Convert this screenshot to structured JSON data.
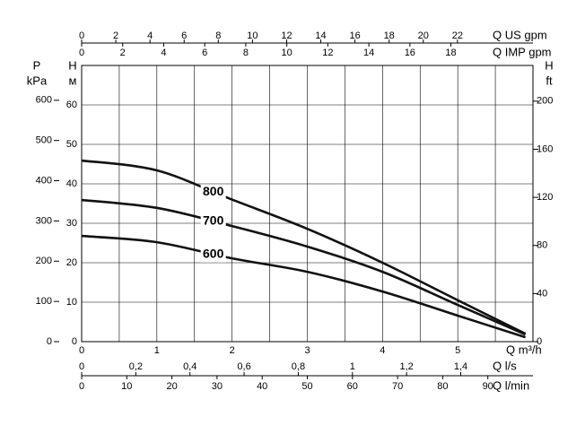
{
  "chart_data": {
    "type": "line",
    "xlabel": "Q m³/h",
    "xlim": [
      0,
      6
    ],
    "xticks": [
      0,
      1,
      2,
      3,
      4,
      5
    ],
    "xminorticks": [
      0.5,
      1.5,
      2.5,
      3.5,
      4.5,
      5.5
    ],
    "ylabel": "H",
    "yunit": "м",
    "ylim": [
      0,
      70
    ],
    "yticks": [
      0,
      10,
      20,
      30,
      40,
      50,
      60
    ],
    "grid": true,
    "top_axes": [
      {
        "label": "Q US gpm",
        "lim": [
          0,
          26.42
        ],
        "ticks": [
          0,
          2,
          4,
          6,
          8,
          10,
          12,
          14,
          16,
          18,
          20,
          22
        ]
      },
      {
        "label": "Q IMP gpm",
        "lim": [
          0,
          22
        ],
        "ticks": [
          0,
          2,
          4,
          6,
          8,
          10,
          12,
          14,
          16,
          18
        ]
      }
    ],
    "bottom_axes": [
      {
        "label": "Q l/s",
        "lim": [
          0,
          1.6667
        ],
        "ticks": [
          0,
          {
            "value": 0.2,
            "label": "0,2"
          },
          {
            "value": 0.4,
            "label": "0,4"
          },
          {
            "value": 0.6,
            "label": "0,6"
          },
          {
            "value": 0.8,
            "label": "0,8"
          },
          1,
          {
            "value": 1.2,
            "label": "1,2"
          },
          {
            "value": 1.4,
            "label": "1,4"
          }
        ]
      },
      {
        "label": "Q l/min",
        "lim": [
          0,
          100
        ],
        "ticks": [
          0,
          10,
          20,
          30,
          40,
          50,
          60,
          70,
          80,
          90
        ]
      }
    ],
    "left_axis": {
      "label": "P",
      "unit": "kPa",
      "lim": [
        0,
        686.5
      ],
      "ticks": [
        0,
        100,
        200,
        300,
        400,
        500,
        600
      ]
    },
    "right_axis": {
      "label": "H",
      "unit": "ft",
      "lim": [
        0,
        229.7
      ],
      "ticks": [
        0,
        40,
        80,
        120,
        160,
        200
      ]
    },
    "x": [
      0,
      1,
      2,
      3,
      4,
      5,
      5.9
    ],
    "series": [
      {
        "name": "800",
        "color": "#111111",
        "values": [
          45.9,
          43.4,
          36.0,
          28.6,
          20.0,
          10.5,
          2.0
        ]
      },
      {
        "name": "700",
        "color": "#111111",
        "values": [
          35.9,
          33.9,
          29.3,
          24.1,
          17.7,
          9.3,
          1.8
        ]
      },
      {
        "name": "600",
        "color": "#111111",
        "values": [
          26.8,
          25.2,
          21.1,
          17.7,
          12.7,
          6.6,
          1.1
        ]
      }
    ]
  }
}
